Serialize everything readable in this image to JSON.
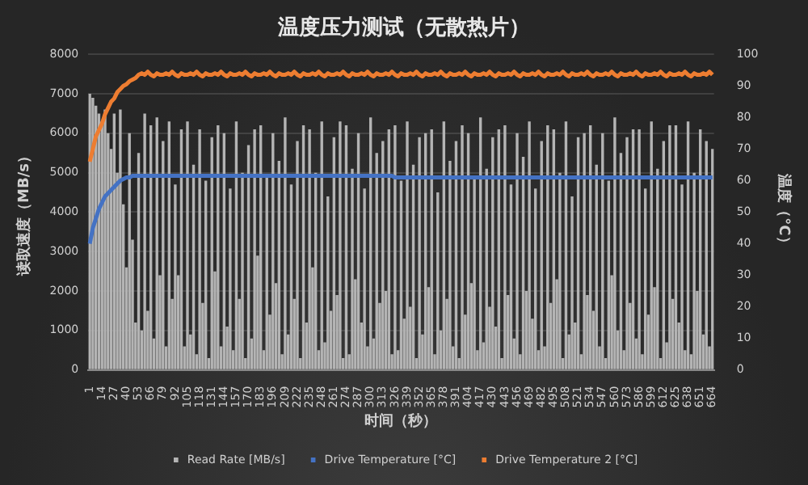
{
  "chart_data": {
    "type": "bar",
    "title": "温度压力测试（无散热片）",
    "xlabel": "时间（秒）",
    "ylabel": "读取速度（MB/s）",
    "y2label": "温度（°C）",
    "categories": [
      "1",
      null,
      null,
      null,
      "14",
      null,
      null,
      null,
      "27",
      null,
      null,
      null,
      "40",
      null,
      null,
      null,
      "53",
      null,
      null,
      null,
      "66",
      null,
      null,
      null,
      "79",
      null,
      null,
      null,
      "92",
      null,
      null,
      null,
      "105",
      null,
      null,
      null,
      "118",
      null,
      null,
      null,
      "131",
      null,
      null,
      null,
      "144",
      null,
      null,
      null,
      "157",
      null,
      null,
      null,
      "170",
      null,
      null,
      null,
      "183",
      null,
      null,
      null,
      "196",
      null,
      null,
      null,
      "209",
      null,
      null,
      null,
      "222",
      null,
      null,
      null,
      "235",
      null,
      null,
      null,
      "248",
      null,
      null,
      null,
      "261",
      null,
      null,
      null,
      "274",
      null,
      null,
      null,
      "287",
      null,
      null,
      null,
      "300",
      null,
      null,
      null,
      "313",
      null,
      null,
      null,
      "326",
      null,
      null,
      null,
      "339",
      null,
      null,
      null,
      "352",
      null,
      null,
      null,
      "365",
      null,
      null,
      null,
      "378",
      null,
      null,
      null,
      "391",
      null,
      null,
      null,
      "404",
      null,
      null,
      null,
      "417",
      null,
      null,
      null,
      "430",
      null,
      null,
      null,
      "443",
      null,
      null,
      null,
      "456",
      null,
      null,
      null,
      "469",
      null,
      null,
      null,
      "482",
      null,
      null,
      null,
      "495",
      null,
      null,
      null,
      "508",
      null,
      null,
      null,
      "521",
      null,
      null,
      null,
      "534",
      null,
      null,
      null,
      "547",
      null,
      null,
      null,
      "560",
      null,
      null,
      null,
      "573",
      null,
      null,
      null,
      "586",
      null,
      null,
      null,
      "599",
      null,
      null,
      null,
      "612",
      null,
      null,
      null,
      "625",
      null,
      null,
      null,
      "638",
      null,
      null,
      null,
      "651",
      null,
      null,
      null,
      "664"
    ],
    "series": [
      {
        "name": "Read Rate [MB/s]",
        "color": "#b4b4b4",
        "values": [
          7000,
          6900,
          6700,
          6500,
          6300,
          6600,
          6000,
          5600,
          6500,
          5000,
          6600,
          4200,
          2600,
          6000,
          3300,
          1200,
          5500,
          1000,
          6500,
          1500,
          6200,
          800,
          6400,
          2400,
          5800,
          600,
          6300,
          1800,
          4700,
          2400,
          6100,
          600,
          6300,
          900,
          5200,
          400,
          6100,
          1700,
          4800,
          300,
          5900,
          2500,
          6200,
          600,
          6000,
          1100,
          4600,
          500,
          6300,
          1800,
          5000,
          300,
          5700,
          800,
          6100,
          2900,
          6200,
          500,
          4900,
          1400,
          6000,
          2200,
          5300,
          400,
          6400,
          900,
          4700,
          1800,
          5800,
          300,
          6200,
          1200,
          6100,
          2600,
          5000,
          500,
          6300,
          700,
          4400,
          1500,
          5900,
          1900,
          6300,
          300,
          6200,
          400,
          5100,
          2300,
          6000,
          1200,
          4600,
          600,
          6400,
          800,
          5500,
          1700,
          5800,
          2000,
          6100,
          400,
          6200,
          500,
          4800,
          1300,
          6300,
          1600,
          5200,
          300,
          5900,
          900,
          6000,
          2100,
          6100,
          400,
          4500,
          1000,
          6300,
          1800,
          5300,
          600,
          5800,
          300,
          6200,
          1400,
          6000,
          2200,
          4900,
          500,
          6400,
          700,
          5100,
          1600,
          5900,
          1100,
          6100,
          300,
          6200,
          1900,
          4700,
          800,
          6000,
          400,
          5400,
          2000,
          6300,
          1300,
          4600,
          500,
          5800,
          600,
          6200,
          1700,
          6100,
          2300,
          5000,
          300,
          6300,
          900,
          4400,
          1200,
          5900,
          400,
          6000,
          1900,
          6200,
          1500,
          5200,
          600,
          6000,
          300,
          4800,
          2400,
          6400,
          1000,
          5500,
          500,
          5900,
          1700,
          6100,
          800,
          6100,
          400,
          4600,
          1400,
          6300,
          2100,
          5100,
          300,
          5800,
          700,
          6200,
          1800,
          6200,
          1200,
          4700,
          500,
          6300,
          400,
          5000,
          2000,
          6100,
          900,
          5800,
          600,
          5600
        ]
      },
      {
        "name": "Drive Temperature [°C]",
        "type": "line",
        "axis": "y2",
        "color": "#4472c4",
        "values": [
          40,
          45,
          48,
          51,
          53,
          55,
          56,
          57,
          58,
          59,
          60,
          60.5,
          61,
          61,
          61.5,
          61.5,
          61.5,
          61.5,
          61.5,
          61.5,
          61.5,
          61.5,
          61.5,
          61.5,
          61.5,
          61.5,
          61.5,
          61.5,
          61.5,
          61.5,
          61.5,
          61.5,
          61.5,
          61.5,
          61.5,
          61.5,
          61.5,
          61.5,
          61.5,
          61.5,
          61.5,
          61.5,
          61.5,
          61.5,
          61.5,
          61.5,
          61.5,
          61.5,
          61.5,
          61.5,
          61.5,
          61.5,
          61.5,
          61.5,
          61.5,
          61.5,
          61.5,
          61.5,
          61.5,
          61.5,
          61.5,
          61.5,
          61.5,
          61.5,
          61.5,
          61.5,
          61.5,
          61.5,
          61.5,
          61.5,
          61.5,
          61.5,
          61.5,
          61.5,
          61.5,
          61.5,
          61.5,
          61.5,
          61.5,
          61.5,
          61.5,
          61.5,
          61.5,
          61.5,
          61.5,
          61.5,
          61.5,
          61.5,
          61.5,
          61.5,
          61.5,
          61.5,
          61.5,
          61.5,
          61.5,
          61.5,
          61.5,
          61.5,
          61.5,
          61.5,
          61,
          61,
          61,
          61,
          61,
          61,
          61,
          61,
          61,
          61,
          61,
          61,
          61,
          61,
          61,
          61,
          61,
          61,
          61,
          61,
          61,
          61,
          61,
          61,
          61,
          61,
          61,
          61,
          61,
          61,
          61,
          61,
          61,
          61,
          61,
          61,
          61,
          61,
          61,
          61,
          61,
          61,
          61,
          61,
          61,
          61,
          61,
          61,
          61,
          61,
          61,
          61,
          61,
          61,
          61,
          61,
          61,
          61,
          61,
          61,
          61,
          61,
          61,
          61,
          61,
          61,
          61,
          61,
          61,
          61,
          61,
          61,
          61,
          61,
          61,
          61,
          61,
          61,
          61,
          61,
          61,
          61,
          61,
          61,
          61,
          61,
          61,
          61,
          61,
          61,
          61,
          61,
          61,
          61,
          61,
          61,
          61,
          61,
          61,
          61,
          61,
          61,
          61,
          61,
          61
        ]
      },
      {
        "name": "Drive Temperature 2 [°C]",
        "type": "line",
        "axis": "y2",
        "color": "#ed7d31",
        "values": [
          66,
          70,
          74,
          76,
          78,
          81,
          83,
          85,
          86,
          88,
          89,
          90,
          90.5,
          91.5,
          92,
          92.5,
          93.5,
          94,
          93.5,
          94.5,
          93.5,
          93,
          94,
          93.5,
          93.5,
          94,
          93.5,
          94.5,
          93.5,
          93,
          94,
          93.5,
          93.5,
          94,
          93.5,
          94.5,
          93.5,
          93,
          94,
          93.5,
          93.5,
          94,
          93.5,
          94.5,
          93.5,
          93,
          94,
          93.5,
          93.5,
          94,
          93.5,
          94.5,
          93.5,
          93,
          94,
          93.5,
          93.5,
          94,
          93.5,
          94.5,
          93.5,
          93,
          94,
          93.5,
          93.5,
          94,
          93.5,
          94.5,
          93.5,
          93,
          94,
          93.5,
          93.5,
          94,
          93.5,
          94.5,
          93.5,
          93,
          94,
          93.5,
          93.5,
          94,
          93.5,
          94.5,
          93.5,
          93,
          94,
          93.5,
          93.5,
          94,
          93.5,
          94.5,
          93.5,
          93,
          94,
          93.5,
          93.5,
          94,
          93.5,
          94.5,
          93.5,
          93,
          94,
          93.5,
          93.5,
          94,
          93.5,
          94.5,
          93.5,
          93,
          94,
          93.5,
          93.5,
          94,
          93.5,
          94.5,
          93.5,
          93,
          94,
          93.5,
          93.5,
          94,
          93.5,
          94.5,
          93.5,
          93,
          94,
          93.5,
          93.5,
          94,
          93.5,
          94.5,
          93.5,
          93,
          94,
          93.5,
          93.5,
          94,
          93.5,
          94.5,
          93.5,
          93,
          94,
          93.5,
          93.5,
          94,
          93.5,
          94.5,
          93.5,
          93,
          94,
          93.5,
          93.5,
          94,
          93.5,
          94.5,
          93.5,
          93,
          94,
          93.5,
          93.5,
          94,
          93.5,
          94.5,
          93.5,
          93,
          94,
          93.5,
          93.5,
          94,
          93.5,
          94.5,
          93.5,
          93,
          94,
          93.5,
          93.5,
          94,
          93.5,
          94.5,
          93.5,
          93,
          94,
          93.5,
          93.5,
          94,
          93.5,
          94.5,
          93.5,
          93,
          94,
          93.5,
          93.5,
          94,
          93.5,
          94.5,
          93.5,
          93,
          94,
          93.5,
          93.5,
          94,
          93.5,
          94.5,
          93.5
        ]
      }
    ],
    "ylim": [
      0,
      8000
    ],
    "yticks": [
      0,
      1000,
      2000,
      3000,
      4000,
      5000,
      6000,
      7000,
      8000
    ],
    "y2lim": [
      0,
      100
    ],
    "y2ticks": [
      0,
      10,
      20,
      30,
      40,
      50,
      60,
      70,
      80,
      90,
      100
    ],
    "grid": "y",
    "legend": "bottom",
    "marker": "none"
  }
}
